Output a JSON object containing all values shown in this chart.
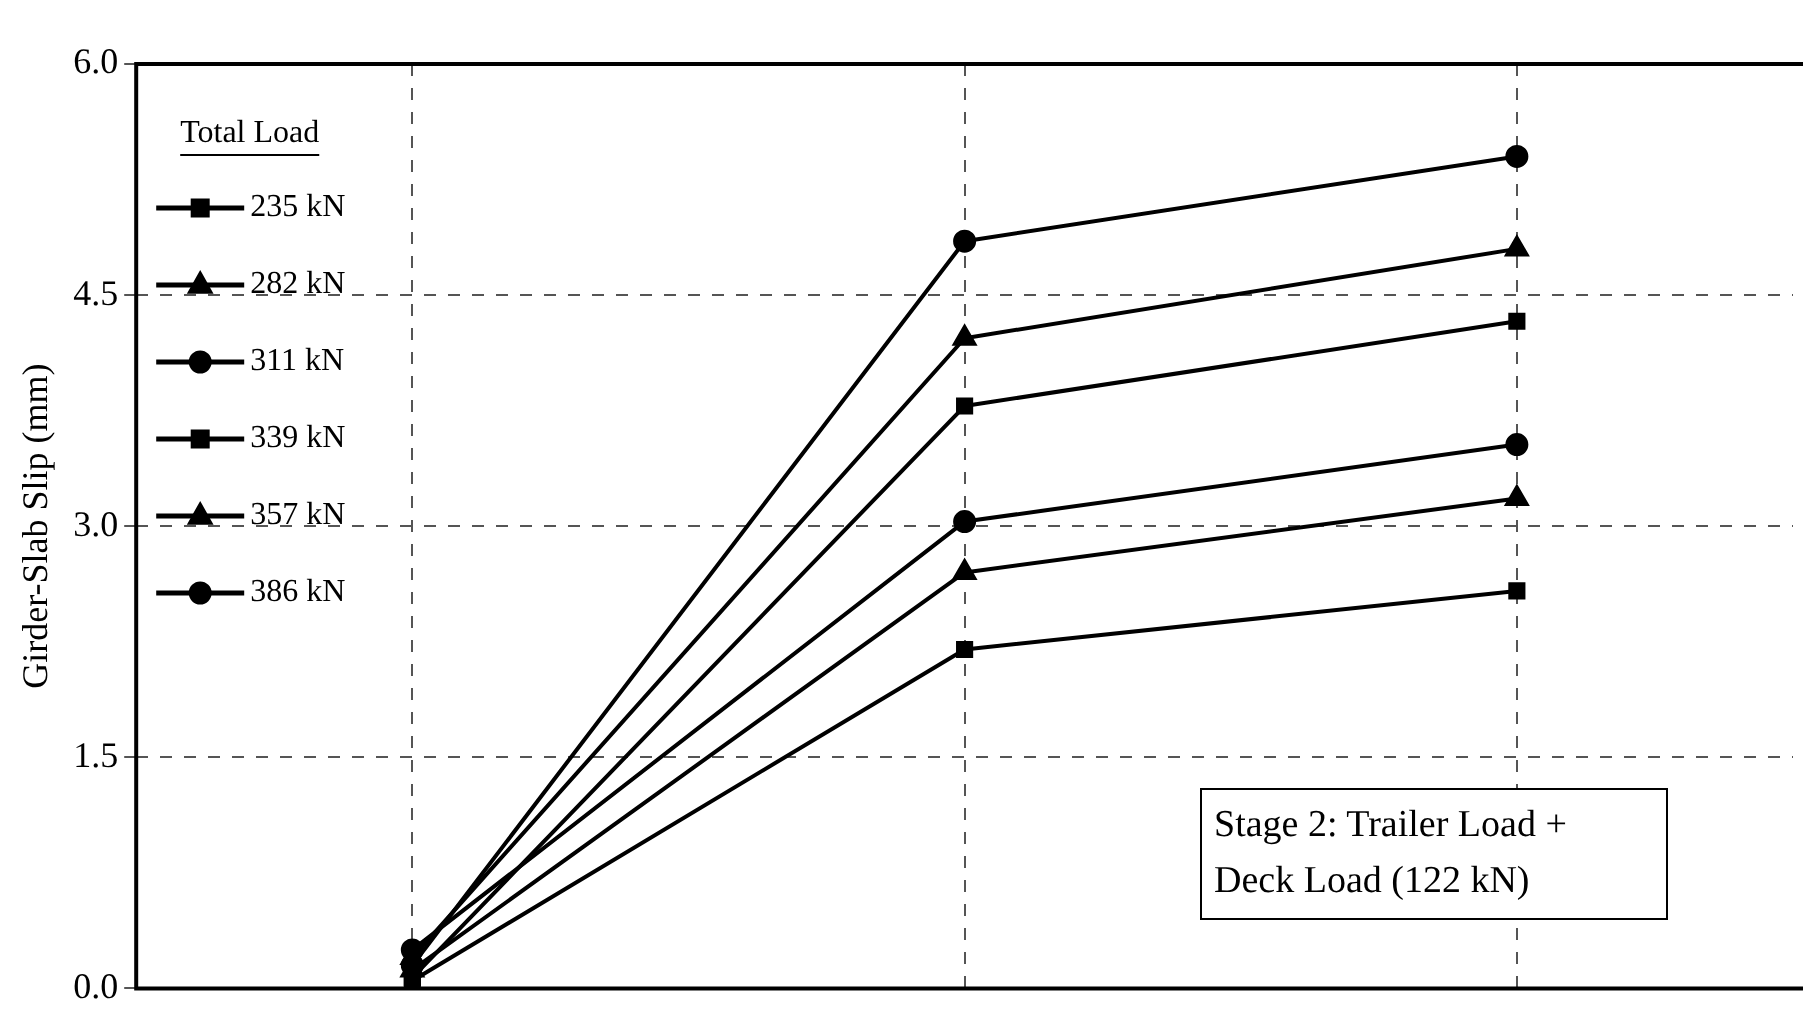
{
  "chart_data": {
    "type": "line",
    "ylabel": "Girder-Slab Slip (mm)",
    "legend_title": "Total Load",
    "categories": [
      null,
      null,
      null
    ],
    "series": [
      {
        "name": "235 kN",
        "color": "#000000",
        "marker": "square",
        "values": [
          0.05,
          2.2,
          2.58
        ]
      },
      {
        "name": "282 kN",
        "color": "#000000",
        "marker": "triangle",
        "values": [
          0.12,
          2.7,
          3.18
        ]
      },
      {
        "name": "311 kN",
        "color": "#000000",
        "marker": "circle",
        "values": [
          0.25,
          3.03,
          3.53
        ]
      },
      {
        "name": "339 kN",
        "color": "#000000",
        "marker": "square",
        "values": [
          0.07,
          3.78,
          4.33
        ]
      },
      {
        "name": "357 kN",
        "color": "#000000",
        "marker": "triangle",
        "values": [
          0.2,
          4.22,
          4.8
        ]
      },
      {
        "name": "386 kN",
        "color": "#000000",
        "marker": "circle",
        "values": [
          0.15,
          4.85,
          5.4
        ]
      }
    ],
    "ylim": [
      0,
      6
    ],
    "yticks": [
      {
        "value": 0,
        "label": "0.0"
      },
      {
        "value": 1.5,
        "label": "1.5"
      },
      {
        "value": 3,
        "label": "3.0"
      },
      {
        "value": 4.5,
        "label": "4.5"
      },
      {
        "value": 6,
        "label": "6.0"
      }
    ],
    "tick_labels": "y",
    "grid": true,
    "legend": "top left",
    "line_style": "solid",
    "annotations": [
      "Stage 2:  Trailer Load + Deck Load (122 kN)"
    ]
  }
}
